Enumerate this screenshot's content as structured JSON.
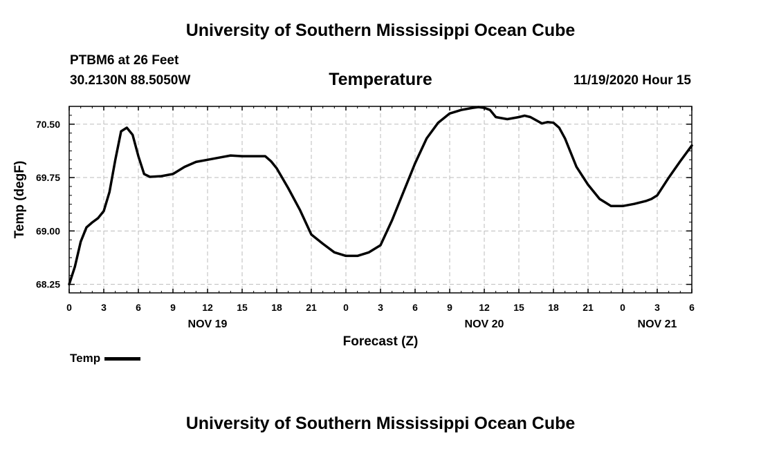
{
  "header": {
    "title": "University of Southern Mississippi Ocean Cube",
    "station": "PTBM6 at 26 Feet",
    "coords": "30.2130N 88.5050W",
    "datetime": "11/19/2020 Hour 15"
  },
  "footer": {
    "title": "University of Southern Mississippi Ocean Cube"
  },
  "legend": {
    "label": "Temp"
  },
  "chart_data": {
    "type": "line",
    "title": "Temperature",
    "xlabel": "Forecast (Z)",
    "ylabel": "Temp (degF)",
    "xlim": [
      0,
      54
    ],
    "ylim": [
      68.13,
      70.75
    ],
    "grid": true,
    "legend_position": "bottom-left",
    "x_ticks": [
      {
        "x": 0,
        "label": "0"
      },
      {
        "x": 3,
        "label": "3"
      },
      {
        "x": 6,
        "label": "6"
      },
      {
        "x": 9,
        "label": "9"
      },
      {
        "x": 12,
        "label": "12"
      },
      {
        "x": 15,
        "label": "15"
      },
      {
        "x": 18,
        "label": "18"
      },
      {
        "x": 21,
        "label": "21"
      },
      {
        "x": 24,
        "label": "0"
      },
      {
        "x": 27,
        "label": "3"
      },
      {
        "x": 30,
        "label": "6"
      },
      {
        "x": 33,
        "label": "9"
      },
      {
        "x": 36,
        "label": "12"
      },
      {
        "x": 39,
        "label": "15"
      },
      {
        "x": 42,
        "label": "18"
      },
      {
        "x": 45,
        "label": "21"
      },
      {
        "x": 48,
        "label": "0"
      },
      {
        "x": 51,
        "label": "3"
      },
      {
        "x": 54,
        "label": "6"
      }
    ],
    "day_labels": [
      {
        "x": 12,
        "label": "NOV 19"
      },
      {
        "x": 36,
        "label": "NOV 20"
      },
      {
        "x": 51,
        "label": "NOV 21"
      }
    ],
    "y_ticks": [
      {
        "y": 68.25,
        "label": "68.25"
      },
      {
        "y": 69.0,
        "label": "69.00"
      },
      {
        "y": 69.75,
        "label": "69.75"
      },
      {
        "y": 70.5,
        "label": "70.50"
      }
    ],
    "series": [
      {
        "name": "Temp",
        "color": "#000000",
        "x": [
          0,
          0.5,
          1,
          1.5,
          2,
          2.5,
          3,
          3.5,
          4,
          4.5,
          5,
          5.5,
          6,
          6.5,
          7,
          8,
          9,
          10,
          11,
          12,
          13,
          14,
          15,
          16,
          17,
          17.5,
          18,
          19,
          20,
          21,
          22,
          23,
          24,
          25,
          26,
          27,
          28,
          29,
          30,
          31,
          32,
          33,
          34,
          35,
          35.5,
          36,
          36.5,
          37,
          38,
          39,
          39.5,
          40,
          41,
          41.5,
          42,
          42.5,
          43,
          44,
          45,
          46,
          46.5,
          47,
          48,
          49,
          50,
          50.5,
          51,
          52,
          53,
          54
        ],
        "y": [
          68.25,
          68.5,
          68.85,
          69.05,
          69.12,
          69.18,
          69.28,
          69.55,
          70.0,
          70.4,
          70.45,
          70.35,
          70.05,
          69.8,
          69.76,
          69.77,
          69.8,
          69.9,
          69.97,
          70.0,
          70.03,
          70.06,
          70.05,
          70.05,
          70.05,
          69.98,
          69.88,
          69.6,
          69.3,
          68.95,
          68.82,
          68.7,
          68.65,
          68.65,
          68.7,
          68.8,
          69.15,
          69.55,
          69.95,
          70.3,
          70.52,
          70.65,
          70.7,
          70.73,
          70.74,
          70.73,
          70.7,
          70.6,
          70.57,
          70.6,
          70.62,
          70.6,
          70.51,
          70.53,
          70.52,
          70.45,
          70.3,
          69.9,
          69.65,
          69.45,
          69.4,
          69.35,
          69.35,
          69.38,
          69.42,
          69.45,
          69.5,
          69.75,
          69.98,
          70.2
        ]
      }
    ]
  }
}
